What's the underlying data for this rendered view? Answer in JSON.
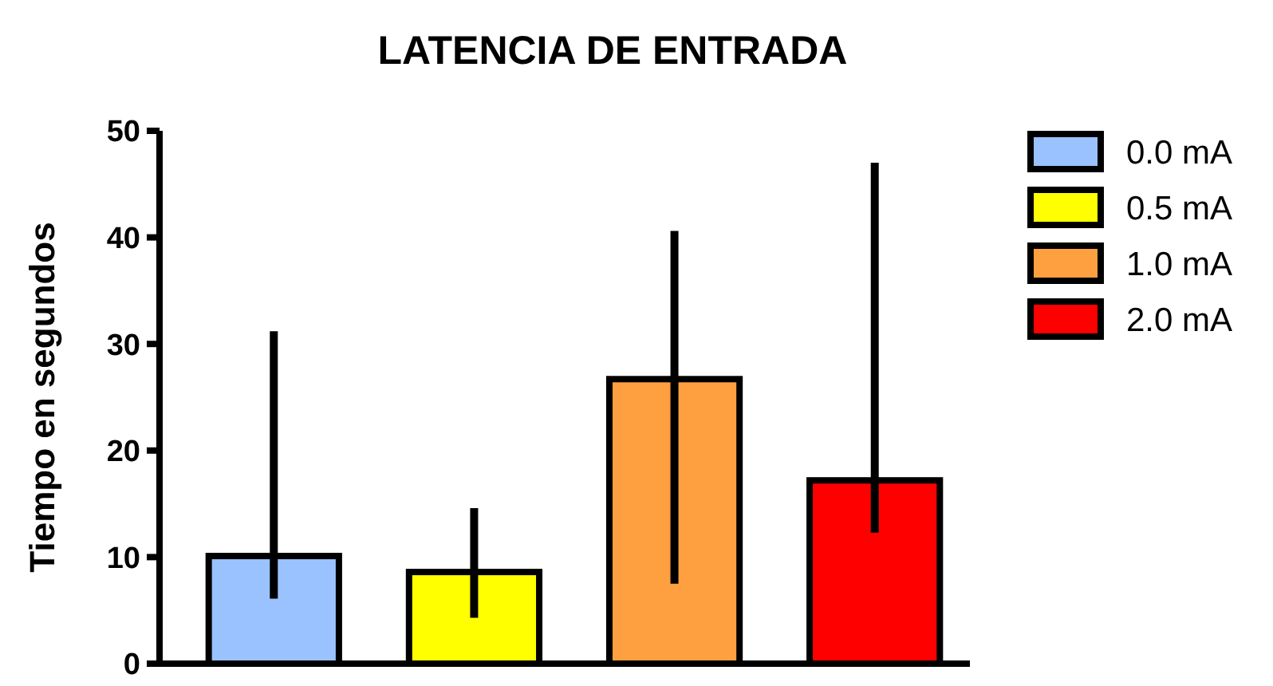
{
  "chart_data": {
    "type": "bar",
    "title": "LATENCIA DE ENTRADA",
    "ylabel": "Tiempo en segundos",
    "categories": [
      null,
      null,
      null,
      null
    ],
    "series": [
      {
        "name": "0.0 mA",
        "color": "#99c2ff",
        "values": [
          10.1,
          null,
          null,
          null
        ],
        "errors": [
          [
            6.1,
            31.2
          ],
          null,
          null,
          null
        ]
      },
      {
        "name": "0.5 mA",
        "color": "#ffff00",
        "values": [
          null,
          8.6,
          null,
          null
        ],
        "errors": [
          null,
          [
            4.3,
            14.6
          ],
          null,
          null
        ]
      },
      {
        "name": "1.0 mA",
        "color": "#ffa040",
        "values": [
          null,
          null,
          26.7,
          null
        ],
        "errors": [
          null,
          null,
          [
            7.5,
            40.6
          ],
          null
        ]
      },
      {
        "name": "2.0 mA",
        "color": "#ff0000",
        "values": [
          null,
          null,
          null,
          17.2
        ],
        "errors": [
          null,
          null,
          null,
          [
            12.3,
            47.0
          ]
        ]
      }
    ],
    "ylim": [
      0,
      50
    ],
    "yticks": [
      0,
      10,
      20,
      30,
      40,
      50
    ],
    "grid": false,
    "legend": "right"
  }
}
